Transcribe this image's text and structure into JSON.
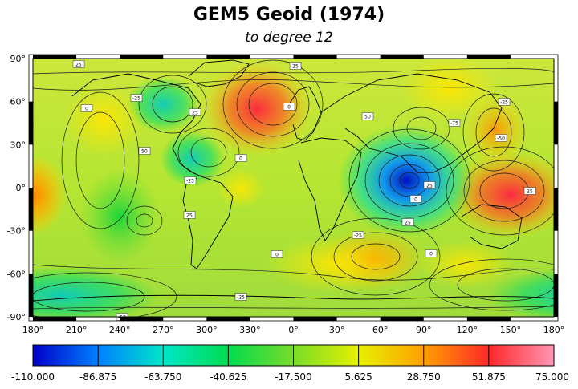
{
  "title": "GEM5 Geoid (1974)",
  "subtitle": "to degree 12",
  "map": {
    "projection": "equirectangular",
    "lon_labels": [
      "180°",
      "210°",
      "240°",
      "270°",
      "300°",
      "330°",
      "0°",
      "30°",
      "60°",
      "90°",
      "120°",
      "150°",
      "180°"
    ],
    "lat_labels": [
      "90°",
      "60°",
      "30°",
      "0°",
      "-30°",
      "-60°",
      "-90°"
    ],
    "contour_labels": [
      "25",
      "0",
      "-25",
      "25",
      "50",
      "0",
      "-25",
      "25",
      "0",
      "-25",
      "-50",
      "25",
      "0",
      "50",
      "-75",
      "-50",
      "25",
      "0",
      "25",
      "-25",
      "0",
      "-25",
      "25"
    ],
    "anomalies": [
      {
        "name": "north-atlantic-high",
        "lon": -25,
        "lat": 55,
        "value": 70
      },
      {
        "name": "new-guinea-high",
        "lon": 150,
        "lat": -5,
        "value": 75
      },
      {
        "name": "indian-ocean-low",
        "lon": 78,
        "lat": 5,
        "value": -110
      },
      {
        "name": "hudson-bay-low",
        "lon": -90,
        "lat": 58,
        "value": -55
      },
      {
        "name": "caribbean-low",
        "lon": -70,
        "lat": 20,
        "value": -45
      },
      {
        "name": "antarctic-low-east-pacific",
        "lon": -160,
        "lat": -75,
        "value": -60
      },
      {
        "name": "east-pacific-low",
        "lon": -120,
        "lat": -20,
        "value": -40
      },
      {
        "name": "south-atlantic-high",
        "lon": 55,
        "lat": -50,
        "value": 40
      },
      {
        "name": "east-pacific-high",
        "lon": 180,
        "lat": -5,
        "value": 45
      },
      {
        "name": "japan-high",
        "lon": 140,
        "lat": 40,
        "value": 45
      }
    ]
  },
  "colorbar": {
    "min": -110,
    "max": 75,
    "tick_labels": [
      "-110.000",
      "-86.875",
      "-63.750",
      "-40.625",
      "-17.500",
      "5.625",
      "28.750",
      "51.875",
      "75.000"
    ],
    "colors": [
      "#0000c8",
      "#00b4ff",
      "#00e6b4",
      "#00dc3c",
      "#a0e632",
      "#ffff00",
      "#ffa000",
      "#ff2828",
      "#ff96b4"
    ]
  }
}
